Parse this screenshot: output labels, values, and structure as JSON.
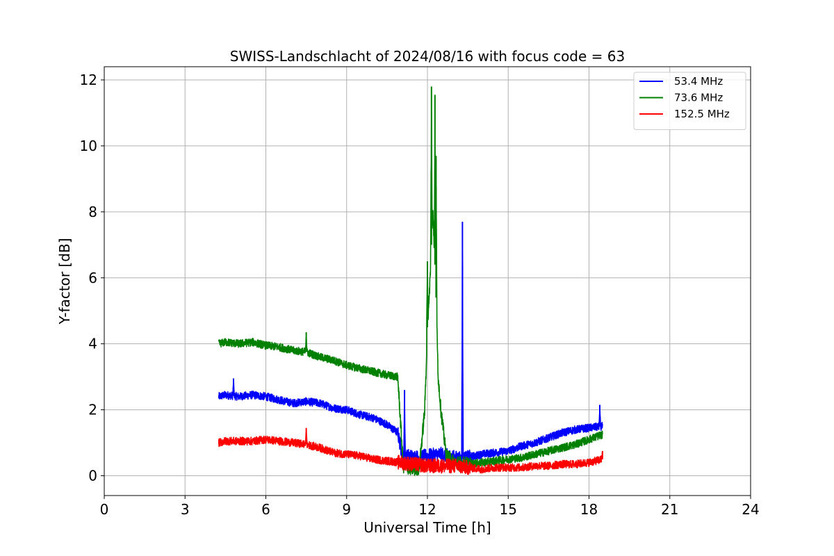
{
  "chart_data": {
    "type": "line",
    "title": "SWISS-Landschlacht of 2024/08/16 with focus code = 63",
    "xlabel": "Universal Time [h]",
    "ylabel": "Y-factor [dB]",
    "xlim": [
      0,
      24
    ],
    "ylim": [
      -0.6,
      12.4
    ],
    "xticks": [
      0,
      3,
      6,
      9,
      12,
      15,
      18,
      21,
      24
    ],
    "yticks": [
      0,
      2,
      4,
      6,
      8,
      10,
      12
    ],
    "grid": true,
    "legend_position": "upper-right",
    "series": [
      {
        "name": " 53.4 MHz",
        "color": "#0000ff",
        "x": [
          4.25,
          4.5,
          5.0,
          5.5,
          6.0,
          6.5,
          7.0,
          7.5,
          8.0,
          8.5,
          9.0,
          9.5,
          10.0,
          10.5,
          10.9,
          11.1,
          11.3,
          11.6,
          12.0,
          12.5,
          13.0,
          13.3,
          13.5,
          14.0,
          14.5,
          15.0,
          15.5,
          16.0,
          16.5,
          17.0,
          17.5,
          18.0,
          18.5
        ],
        "y": [
          2.4,
          2.45,
          2.4,
          2.45,
          2.4,
          2.3,
          2.2,
          2.25,
          2.2,
          2.05,
          2.0,
          1.85,
          1.75,
          1.55,
          1.3,
          0.5,
          0.6,
          0.55,
          0.6,
          0.65,
          0.55,
          0.5,
          0.55,
          0.65,
          0.7,
          0.75,
          0.9,
          1.0,
          1.15,
          1.3,
          1.4,
          1.45,
          1.5
        ],
        "peaks": [
          {
            "x": 4.8,
            "y": 2.95
          },
          {
            "x": 11.15,
            "y": 2.6
          },
          {
            "x": 13.3,
            "y": 7.7
          },
          {
            "x": 18.4,
            "y": 2.15
          }
        ]
      },
      {
        "name": " 73.6 MHz",
        "color": "#008000",
        "x": [
          4.25,
          4.5,
          5.0,
          5.5,
          6.0,
          6.5,
          7.0,
          7.5,
          8.0,
          8.5,
          9.0,
          9.5,
          10.0,
          10.5,
          10.9,
          11.1,
          11.5,
          11.7,
          11.9,
          12.0,
          12.1,
          12.2,
          12.3,
          12.4,
          12.5,
          12.7,
          13.0,
          13.5,
          14.0,
          14.5,
          15.0,
          15.5,
          16.0,
          16.5,
          17.0,
          17.5,
          18.0,
          18.5
        ],
        "y": [
          4.0,
          4.05,
          4.0,
          4.05,
          3.95,
          3.9,
          3.8,
          3.75,
          3.6,
          3.5,
          3.35,
          3.25,
          3.15,
          3.05,
          3.0,
          0.3,
          0.2,
          0.25,
          2.0,
          4.5,
          6.0,
          8.0,
          6.0,
          3.0,
          2.0,
          0.6,
          0.4,
          0.35,
          0.4,
          0.45,
          0.5,
          0.55,
          0.65,
          0.75,
          0.85,
          0.95,
          1.1,
          1.25
        ],
        "peaks": [
          {
            "x": 7.5,
            "y": 4.35
          },
          {
            "x": 12.15,
            "y": 11.8
          },
          {
            "x": 12.28,
            "y": 11.55
          },
          {
            "x": 12.32,
            "y": 9.7
          },
          {
            "x": 12.0,
            "y": 6.5
          }
        ]
      },
      {
        "name": "152.5 MHz",
        "color": "#ff0000",
        "x": [
          4.25,
          4.5,
          5.0,
          5.5,
          6.0,
          6.5,
          7.0,
          7.5,
          8.0,
          8.5,
          9.0,
          9.5,
          10.0,
          10.5,
          11.0,
          11.5,
          12.0,
          12.5,
          13.0,
          13.5,
          14.0,
          14.5,
          15.0,
          15.5,
          16.0,
          16.5,
          17.0,
          17.5,
          18.0,
          18.5
        ],
        "y": [
          1.0,
          1.05,
          1.05,
          1.05,
          1.1,
          1.05,
          1.0,
          0.95,
          0.85,
          0.7,
          0.65,
          0.6,
          0.5,
          0.45,
          0.4,
          0.35,
          0.3,
          0.3,
          0.3,
          0.25,
          0.2,
          0.25,
          0.25,
          0.25,
          0.3,
          0.3,
          0.35,
          0.35,
          0.4,
          0.5
        ],
        "peaks": [
          {
            "x": 7.5,
            "y": 1.45
          },
          {
            "x": 18.5,
            "y": 0.75
          }
        ]
      }
    ]
  }
}
